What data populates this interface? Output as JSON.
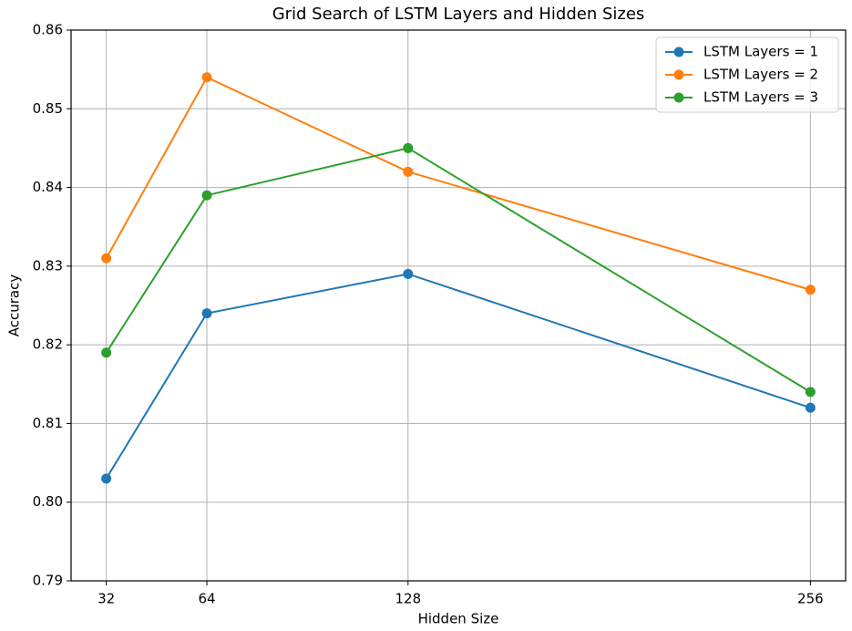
{
  "chart_data": {
    "type": "line",
    "title": "Grid Search of LSTM Layers and Hidden Sizes",
    "x_label": "Hidden Size",
    "y_label": "Accuracy",
    "x": [
      32,
      64,
      128,
      256
    ],
    "series": [
      {
        "name": "LSTM Layers = 1",
        "color": "#1f77b4",
        "values": [
          0.803,
          0.824,
          0.829,
          0.812
        ]
      },
      {
        "name": "LSTM Layers = 2",
        "color": "#ff7f0e",
        "values": [
          0.831,
          0.854,
          0.842,
          0.827
        ]
      },
      {
        "name": "LSTM Layers = 3",
        "color": "#2ca02c",
        "values": [
          0.819,
          0.839,
          0.845,
          0.814
        ]
      }
    ],
    "xlim": [
      20.8,
      267.2
    ],
    "xticks": [
      32,
      64,
      128,
      256
    ],
    "ylim": [
      0.79,
      0.86
    ],
    "yticks": [
      0.79,
      {
        "value": 0.8,
        "label": "0.80"
      },
      0.81,
      0.82,
      0.83,
      0.84,
      0.85,
      0.86
    ],
    "grid": true,
    "legend": "upper right"
  }
}
